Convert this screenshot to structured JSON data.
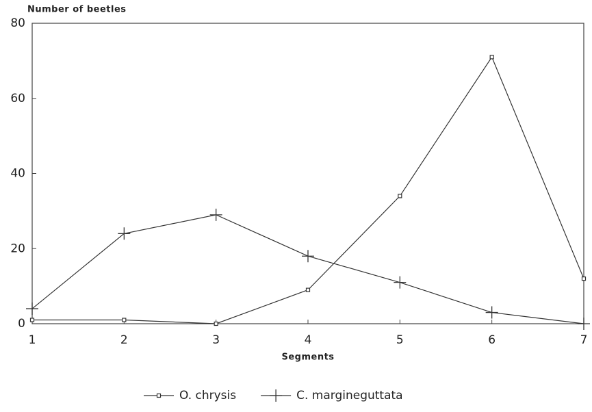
{
  "chart_data": {
    "type": "line",
    "y_label": "Number of beetles",
    "x_label": "Segments",
    "x": [
      1,
      2,
      3,
      4,
      5,
      6,
      7
    ],
    "series": [
      {
        "name": "O. chrysis",
        "color": "#333333",
        "marker": "square",
        "values": [
          1,
          1,
          0,
          9,
          34,
          71,
          12
        ]
      },
      {
        "name": "C. margineguttata",
        "color": "#333333",
        "marker": "plus",
        "values": [
          4,
          24,
          29,
          18,
          11,
          3,
          0
        ]
      }
    ],
    "xlim": [
      1,
      7
    ],
    "xticks": [
      1,
      2,
      3,
      4,
      5,
      6,
      7
    ],
    "ylim": [
      0,
      80
    ],
    "yticks": [
      0,
      20,
      40,
      60,
      80
    ],
    "grid": false,
    "legend": "bottom"
  }
}
